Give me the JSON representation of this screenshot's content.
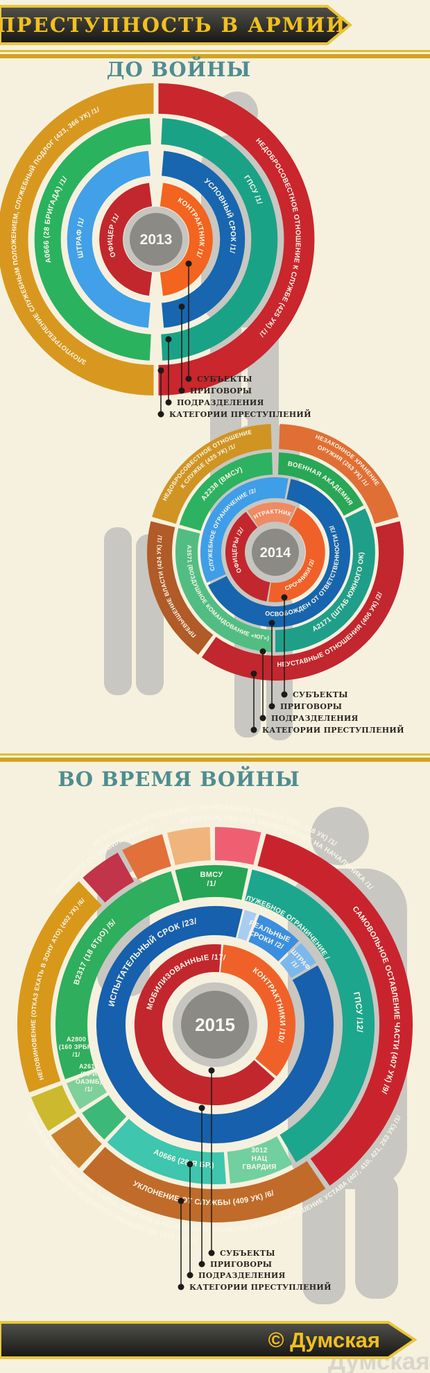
{
  "header": {
    "title": "ПРЕСТУПНОСТЬ В АРМИИ"
  },
  "sections": {
    "before": "ДО ВОЙНЫ",
    "during": "ВО ВРЕМЯ ВОЙНЫ"
  },
  "legend": {
    "items": [
      "СУБЪЕКТЫ",
      "ПРИГОВОРЫ",
      "ПОДРАЗДЕЛЕНИЯ",
      "КАТЕГОРИИ ПРЕСТУПЛЕНИЙ"
    ]
  },
  "footer": {
    "credit": "© Думская",
    "watermark": "Думская"
  },
  "colors": {
    "background": "#f6f1de",
    "banner_dark": "#23221f",
    "banner_border": "#e9c53e",
    "banner_text_gold": "#f2c01e",
    "stripe_gold": "#e4bb31",
    "heading_teal": "#4e8d91",
    "silhouette_gray": "#c8c7c1",
    "center_gray": "#8b8a85",
    "center_halo": "#c6c5bf",
    "legend_ink": "#26251f",
    "watermark_gray": "#d8d6cc"
  },
  "chart_data": [
    {
      "type": "radial-rings",
      "year": "2013",
      "title": "ДО ВОЙНЫ",
      "rings": {
        "categories": {
          "name": "КАТЕГОРИИ ПРЕСТУПЛЕНИЙ",
          "segments": [
            {
              "label": "ЗЛОУПОТРЕБЛЕНИЕ СЛУЖЕБНЫМ ПОЛОЖЕНИЕМ, СЛУЖЕБНЫЙ ПОДЛОГ (423, 366 УК) /1/",
              "value": 1,
              "color": "#d8981f"
            },
            {
              "label": "НЕДОБРОСОВЕСТНОЕ ОТНОШЕНИЕ К СЛУЖБЕ (425 УК) /1/",
              "value": 1,
              "color": "#c9262d"
            }
          ]
        },
        "units": {
          "name": "ПОДРАЗДЕЛЕНИЯ",
          "segments": [
            {
              "label": "А0666 (28 БРИГАДА) /1/",
              "value": 1,
              "color": "#2bb25f"
            },
            {
              "label": "ГПСУ /1/",
              "value": 1,
              "color": "#1aa287"
            }
          ]
        },
        "sentences": {
          "name": "ПРИГОВОРЫ",
          "segments": [
            {
              "label": "ШТРАФ /1/",
              "value": 1,
              "color": "#41a0e8"
            },
            {
              "label": "УСЛОВНЫЙ СРОК /1/",
              "value": 1,
              "color": "#1766af"
            }
          ]
        },
        "subjects": {
          "name": "СУБЪЕКТЫ",
          "segments": [
            {
              "label": "ОФИЦЕР /1/",
              "value": 1,
              "color": "#c2272e"
            },
            {
              "label": "КОНТРАКТНИК /1/",
              "value": 1,
              "color": "#f2641f"
            }
          ]
        }
      }
    },
    {
      "type": "radial-rings",
      "year": "2014",
      "title": "ДО ВОЙНЫ",
      "rings": {
        "categories": {
          "name": "КАТЕГОРИИ ПРЕСТУПЛЕНИЙ",
          "segments": [
            {
              "label": "НЕДОБРОСОВЕСТНОЕ ОТНОШЕНИЕ К СЛУЖБЕ (425 УК) /1/",
              "label_lines": [
                "НЕДОБРОСОВЕСТНОЕ ОТНОШЕНИЕ",
                "К СЛУЖБЕ (425 УК) /1/"
              ],
              "value": 1,
              "color": "#d09423"
            },
            {
              "label": "НЕЗАКОННОЕ ХРАНЕНИЕ ОРУЖИЯ (263 УК) /1/",
              "label_lines": [
                "НЕЗАКОННОЕ ХРАНЕНИЕ",
                "ОРУЖИЯ (263 УК) /1/"
              ],
              "value": 1,
              "color": "#e06f35"
            },
            {
              "label": "НЕУСТАВНЫЕ ОТНОШЕНИЯ (406 УК) /2/",
              "value": 2,
              "color": "#c2262e"
            },
            {
              "label": "ПРЕВЫШЕНИЕ ВЛАСТИ (424 УК) /1/",
              "value": 1,
              "color": "#b05b28"
            }
          ]
        },
        "units": {
          "name": "ПОДРАЗДЕЛЕНИЯ",
          "segments": [
            {
              "label": "А2238 (ВМСУ)",
              "color": "#2db261"
            },
            {
              "label": "ВОЕННАЯ АКАДЕМИЯ",
              "color": "#28a756"
            },
            {
              "label": "А2171 (ШТАБ ЮЖНОГО ОК)",
              "color": "#1f9f8a"
            },
            {
              "label": "А3571 (ВОЗДУШНОЕ КОМАНДОВАНИЕ «ЮГ»)",
              "color": "#52bd82"
            }
          ]
        },
        "sentences": {
          "name": "ПРИГОВОРЫ",
          "segments": [
            {
              "label": "СЛУЖЕБНОЕ ОГРАНИЧЕНИЕ /2/",
              "value": 2,
              "color": "#3f9ee8"
            },
            {
              "label": "ОСВОБОЖДЕН ОТ ОТВЕТСТВЕННОСТИ /3/",
              "value": 3,
              "color": "#1765ae"
            }
          ]
        },
        "subjects": {
          "name": "СУБЪЕКТЫ",
          "segments": [
            {
              "label": "ОФИЦЕРЫ /2/",
              "value": 2,
              "color": "#c2272e"
            },
            {
              "label": "КОНТРАКТНИК /1/",
              "value": 1,
              "color": "#ef8a63"
            },
            {
              "label": "СРОЧНИКИ /2/",
              "value": 2,
              "color": "#f06129"
            }
          ]
        }
      }
    },
    {
      "type": "radial-rings",
      "year": "2015",
      "title": "ВО ВРЕМЯ ВОЙНЫ",
      "rings": {
        "categories": {
          "name": "КАТЕГОРИИ ПРЕСТУПЛЕНИЙ",
          "segments": [
            {
              "label": "НЕПОВИНОВЕНИЕ (ОТКАЗ ЕХАТЬ В ЗОНУ АТО) (402 УК) /6/",
              "value": 6,
              "color": "#d8981a"
            },
            {
              "label": "САМОВОЛЬНОЕ ОСТАВЛЕНИЕ ЧАСТИ (407 УК) /9/",
              "value": 9,
              "color": "#c9242d"
            },
            {
              "label": "УКЛОНЕНИЕ ОТ СЛУЖБЫ (409 УК) /6/",
              "value": 6,
              "color": "#c06b2a"
            },
            {
              "label": "УКЛОНЕНИЕ ОТ МОБИЛИЗАЦИИ /1/",
              "value": 1,
              "color": "#c2344a",
              "label_color": "#d2543b"
            },
            {
              "label": "ДЕЗЕРТИРСТВО (408 УК) /1/",
              "value": 1,
              "color": "#e2703a",
              "label_color": "#df8140"
            },
            {
              "label": "НЕУСТАВНЫЕ ОТНОШЕНИЯ С НАНЕСЕНИЕМ ПОБОЕВ (406, 128 УК) /1/",
              "value": 1,
              "color": "#efb57c",
              "label_color": "#cf4f3e"
            },
            {
              "label": "НАПАДЕНИЕ НА НАЧАЛЬНИКА /1/",
              "value": 1,
              "color": "#ef5f72",
              "label_color": "#c9242d"
            },
            {
              "label": "ХИЩЕНИЕ ВОЕННОГО ИМУЩЕСТВА (410 УК) /1/",
              "value": 1,
              "color": "#c8802c",
              "label_color": "#c8802c"
            },
            {
              "label": "САМОВОЛЬНОЕ ОСТАВЛЕНИЕ ЧАСТИ, ХИЩЕНИЕ И НЕЗАКОННОЕ ХРАНЕНИЕ ОРУЖИЯ, НАРУШЕНИЕ УСТАВА (407, 410, 421, 263 УК) /1/",
              "value": 1,
              "color": "#cdb92e",
              "label_color": "#b5a42c"
            }
          ]
        },
        "units": {
          "name": "ПОДРАЗДЕЛЕНИЯ",
          "segments": [
            {
              "label": "В2317 (18 6ТрО) /5/",
              "value": 5,
              "color": "#2fae5e"
            },
            {
              "label": "ВМСУ /1/",
              "label_lines": [
                "ВМСУ",
                "/1/"
              ],
              "value": 1,
              "color": "#27a556"
            },
            {
              "label": "ГПСУ /12/",
              "value": 12,
              "color": "#1ca68e"
            },
            {
              "label": "3012 НАЦ ГВАРДИЯ",
              "label_lines": [
                "3012",
                "НАЦ",
                "ГВАРДИЯ"
              ],
              "color": "#72cfa0"
            },
            {
              "label": "А0666 (28-Я БР.)",
              "color": "#3ec6ae"
            },
            {
              "label": "А2614 (88-Й ОАЭМБ) /1/",
              "label_lines": [
                "А2614",
                "(88-Й",
                "ОАЭМБ)",
                "/1/"
              ],
              "value": 1,
              "color": "#3cb878"
            },
            {
              "label": "А2800 (160 ЗРБР) /1/",
              "label_lines": [
                "А2800",
                "(160 ЗРБР)",
                "/1/"
              ],
              "value": 1,
              "color": "#7ed09a"
            }
          ]
        },
        "sentences": {
          "name": "ПРИГОВОРЫ",
          "segments": [
            {
              "label": "ИСПЫТАТЕЛЬНЫЙ СРОК /23/",
              "value": 23,
              "color": "#1660ad"
            },
            {
              "label": "РЕАЛЬНЫЕ СРОКИ /2/",
              "label_lines": [
                "РЕАЛЬНЫЕ",
                "СРОКИ /2/"
              ],
              "value": 2,
              "color": "#3a8fe0"
            },
            {
              "label": "ШТРАФ /1/",
              "label_lines": [
                "ШТРАФ",
                "/1/"
              ],
              "value": 1,
              "color": "#7db8ec"
            },
            {
              "label": "СЛУЖЕБНОЕ ОГРАНИЧЕНИЕ /1/",
              "value": 1,
              "color": "#a9cdf0",
              "label_color": "#8cb8e8"
            }
          ]
        },
        "subjects": {
          "name": "СУБЪЕКТЫ",
          "segments": [
            {
              "label": "МОБИЛИЗОВАННЫЕ /17/",
              "value": 17,
              "color": "#c2272e"
            },
            {
              "label": "КОНТРАКТНИКИ /10/",
              "value": 10,
              "color": "#f06129"
            }
          ]
        }
      }
    }
  ]
}
